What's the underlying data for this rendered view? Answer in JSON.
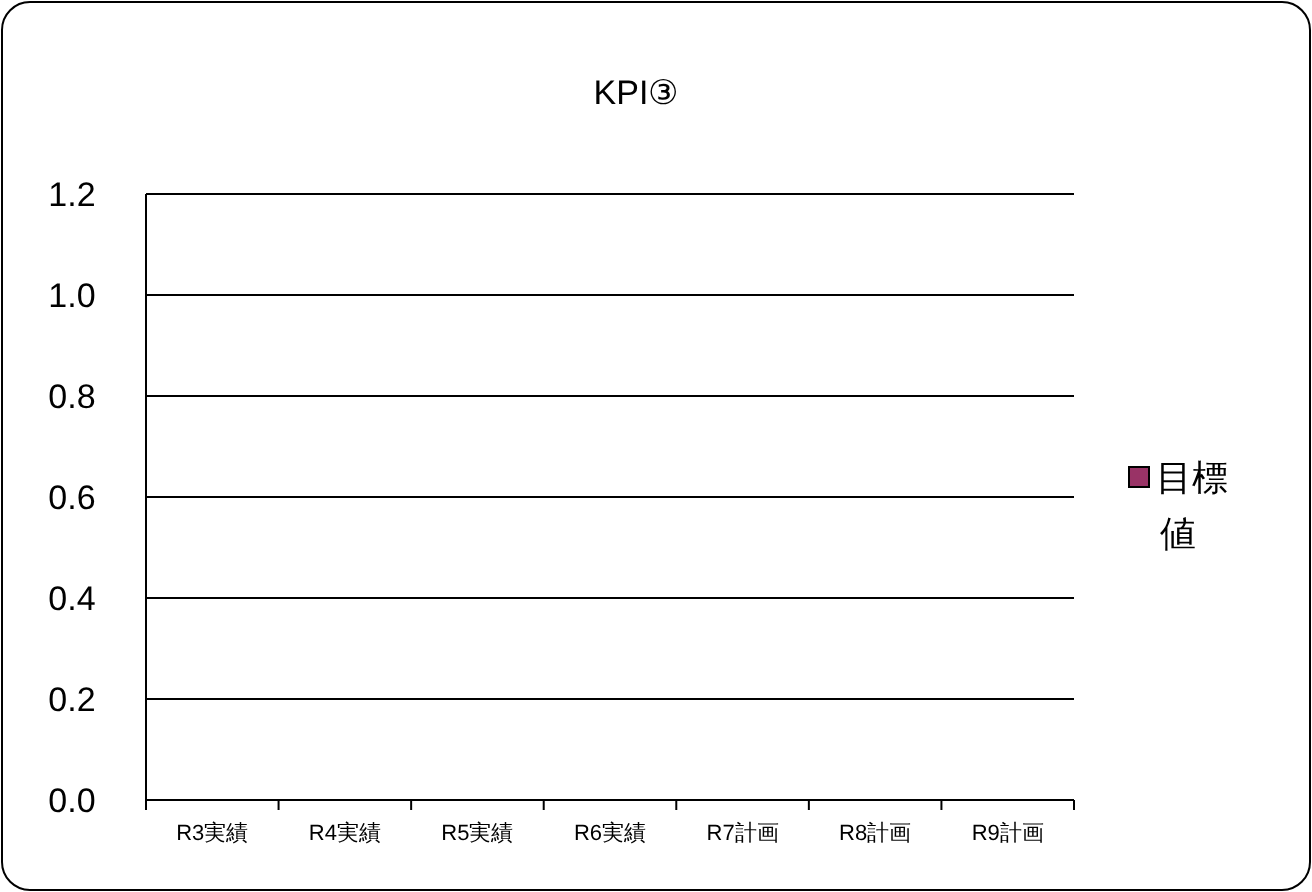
{
  "chart_data": {
    "type": "bar",
    "title": "KPI③",
    "categories": [
      "R3実績",
      "R4実績",
      "R5実績",
      "R6実績",
      "R7計画",
      "R8計画",
      "R9計画"
    ],
    "series": [
      {
        "name": "目標値",
        "color": "#993366",
        "values": [
          null,
          null,
          null,
          null,
          null,
          null,
          null
        ]
      }
    ],
    "ylim": [
      0,
      1.2
    ],
    "yticks": [
      {
        "value": 0,
        "label": "0.0"
      },
      {
        "value": 0.2,
        "label": "0.2"
      },
      {
        "value": 0.4,
        "label": "0.4"
      },
      {
        "value": 0.6,
        "label": "0.6"
      },
      {
        "value": 0.8,
        "label": "0.8"
      },
      {
        "value": 1.0,
        "label": "1.0"
      },
      {
        "value": 1.2,
        "label": "1.2"
      }
    ],
    "grid": "y",
    "legend": "right"
  }
}
